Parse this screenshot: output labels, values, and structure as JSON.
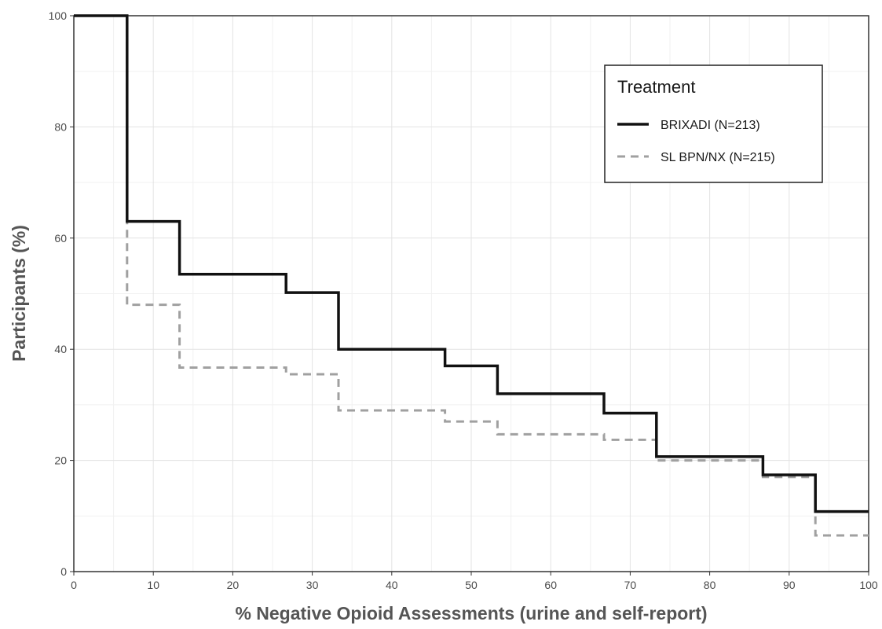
{
  "chart_data": {
    "type": "line",
    "step": true,
    "xlabel": "% Negative Opioid Assessments (urine and self-report)",
    "ylabel": "Participants (%)",
    "xlim": [
      0,
      100
    ],
    "ylim": [
      0,
      100
    ],
    "x_ticks": [
      0,
      10,
      20,
      30,
      40,
      50,
      60,
      70,
      80,
      90,
      100
    ],
    "y_ticks": [
      0,
      20,
      40,
      60,
      80,
      100
    ],
    "grid": true,
    "legend": {
      "title": "Treatment",
      "placement": "top-right"
    },
    "series": [
      {
        "name": "BRIXADI (N=213)",
        "style": "solid",
        "color": "#111111",
        "points": [
          [
            0,
            100
          ],
          [
            6.7,
            100
          ],
          [
            6.7,
            63
          ],
          [
            13.3,
            63
          ],
          [
            13.3,
            53.5
          ],
          [
            26.7,
            53.5
          ],
          [
            26.7,
            50.2
          ],
          [
            33.3,
            50.2
          ],
          [
            33.3,
            40
          ],
          [
            46.7,
            40
          ],
          [
            46.7,
            37
          ],
          [
            53.3,
            37
          ],
          [
            53.3,
            32
          ],
          [
            66.7,
            32
          ],
          [
            66.7,
            28.5
          ],
          [
            73.3,
            28.5
          ],
          [
            73.3,
            20.7
          ],
          [
            86.7,
            20.7
          ],
          [
            86.7,
            17.4
          ],
          [
            93.3,
            17.4
          ],
          [
            93.3,
            10.8
          ],
          [
            100,
            10.8
          ]
        ]
      },
      {
        "name": "SL BPN/NX (N=215)",
        "style": "dashed",
        "color": "#a0a0a0",
        "points": [
          [
            0,
            100
          ],
          [
            6.7,
            100
          ],
          [
            6.7,
            48
          ],
          [
            13.3,
            48
          ],
          [
            13.3,
            36.7
          ],
          [
            26.7,
            36.7
          ],
          [
            26.7,
            35.5
          ],
          [
            33.3,
            35.5
          ],
          [
            33.3,
            29
          ],
          [
            46.7,
            29
          ],
          [
            46.7,
            27
          ],
          [
            53.3,
            27
          ],
          [
            53.3,
            24.7
          ],
          [
            66.7,
            24.7
          ],
          [
            66.7,
            23.7
          ],
          [
            73.3,
            23.7
          ],
          [
            73.3,
            20
          ],
          [
            86.7,
            20
          ],
          [
            86.7,
            17
          ],
          [
            93.3,
            17
          ],
          [
            93.3,
            6.5
          ],
          [
            100,
            6.5
          ]
        ]
      }
    ]
  }
}
